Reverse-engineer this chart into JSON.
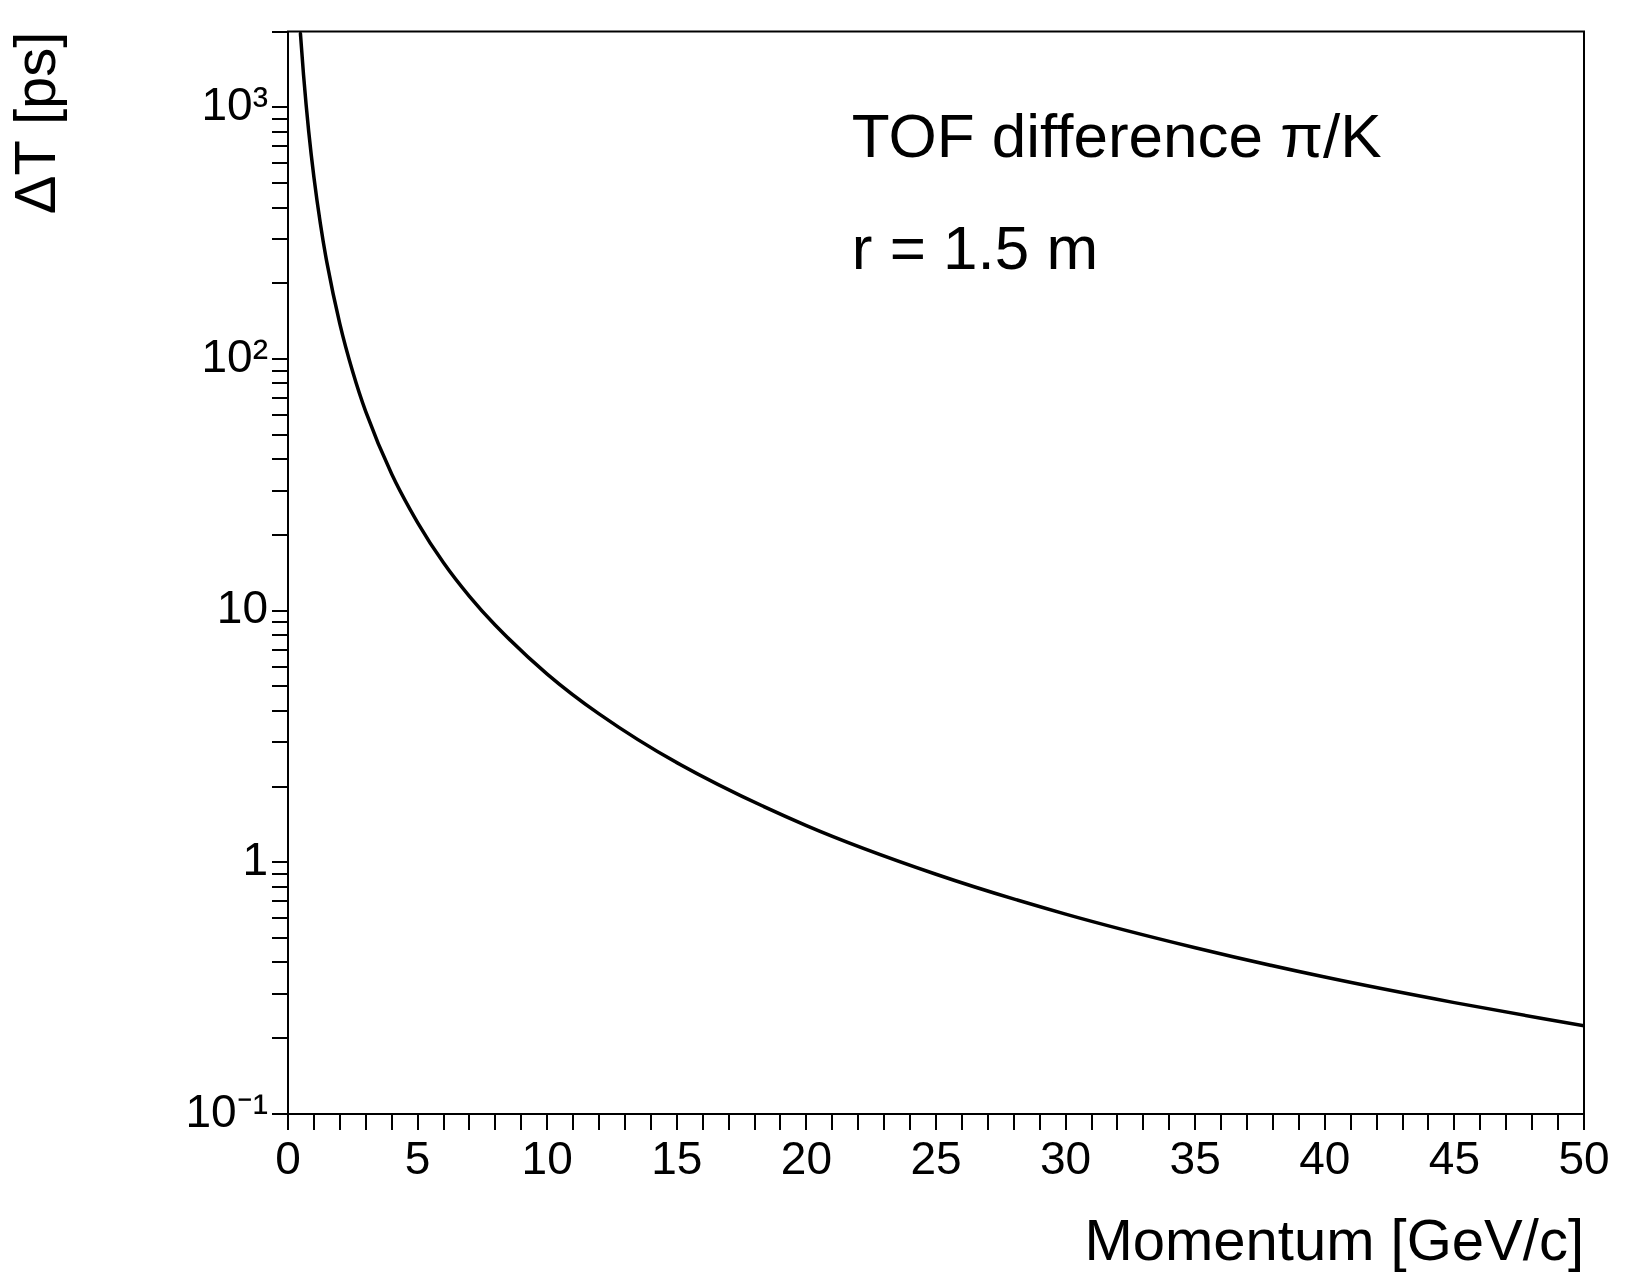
{
  "chart_data": {
    "type": "line",
    "xlabel": "Momentum [GeV/c]",
    "ylabel": "ΔT [ps]",
    "annotations": [
      "TOF difference π/K",
      "r = 1.5 m"
    ],
    "log": "y",
    "grid": false,
    "legend": false,
    "marker": "none",
    "line_style": "solid",
    "xlim": [
      0,
      50
    ],
    "xticks": [
      0,
      {
        "value": 1,
        "label": null
      },
      {
        "value": 2,
        "label": null
      },
      {
        "value": 3,
        "label": null
      },
      {
        "value": 4,
        "label": null
      },
      5,
      {
        "value": 6,
        "label": null
      },
      {
        "value": 7,
        "label": null
      },
      {
        "value": 8,
        "label": null
      },
      {
        "value": 9,
        "label": null
      },
      10,
      {
        "value": 11,
        "label": null
      },
      {
        "value": 12,
        "label": null
      },
      {
        "value": 13,
        "label": null
      },
      {
        "value": 14,
        "label": null
      },
      15,
      {
        "value": 16,
        "label": null
      },
      {
        "value": 17,
        "label": null
      },
      {
        "value": 18,
        "label": null
      },
      {
        "value": 19,
        "label": null
      },
      20,
      {
        "value": 21,
        "label": null
      },
      {
        "value": 22,
        "label": null
      },
      {
        "value": 23,
        "label": null
      },
      {
        "value": 24,
        "label": null
      },
      25,
      {
        "value": 26,
        "label": null
      },
      {
        "value": 27,
        "label": null
      },
      {
        "value": 28,
        "label": null
      },
      {
        "value": 29,
        "label": null
      },
      30,
      {
        "value": 31,
        "label": null
      },
      {
        "value": 32,
        "label": null
      },
      {
        "value": 33,
        "label": null
      },
      {
        "value": 34,
        "label": null
      },
      35,
      {
        "value": 36,
        "label": null
      },
      {
        "value": 37,
        "label": null
      },
      {
        "value": 38,
        "label": null
      },
      {
        "value": 39,
        "label": null
      },
      40,
      {
        "value": 41,
        "label": null
      },
      {
        "value": 42,
        "label": null
      },
      {
        "value": 43,
        "label": null
      },
      {
        "value": 44,
        "label": null
      },
      45,
      {
        "value": 46,
        "label": null
      },
      {
        "value": 47,
        "label": null
      },
      {
        "value": 48,
        "label": null
      },
      {
        "value": 49,
        "label": null
      },
      50
    ],
    "ylim": [
      0.1,
      2000
    ],
    "yticks": [
      {
        "value": 0.1,
        "label": "10⁻¹"
      },
      {
        "value": 0.2,
        "label": null
      },
      {
        "value": 0.3,
        "label": null
      },
      {
        "value": 0.4,
        "label": null
      },
      {
        "value": 0.5,
        "label": null
      },
      {
        "value": 0.6,
        "label": null
      },
      {
        "value": 0.7,
        "label": null
      },
      {
        "value": 0.8,
        "label": null
      },
      {
        "value": 0.9,
        "label": null
      },
      1,
      {
        "value": 2,
        "label": null
      },
      {
        "value": 3,
        "label": null
      },
      {
        "value": 4,
        "label": null
      },
      {
        "value": 5,
        "label": null
      },
      {
        "value": 6,
        "label": null
      },
      {
        "value": 7,
        "label": null
      },
      {
        "value": 8,
        "label": null
      },
      {
        "value": 9,
        "label": null
      },
      10,
      {
        "value": 20,
        "label": null
      },
      {
        "value": 30,
        "label": null
      },
      {
        "value": 40,
        "label": null
      },
      {
        "value": 50,
        "label": null
      },
      {
        "value": 60,
        "label": null
      },
      {
        "value": 70,
        "label": null
      },
      {
        "value": 80,
        "label": null
      },
      {
        "value": 90,
        "label": null
      },
      {
        "value": 100,
        "label": "10²"
      },
      {
        "value": 200,
        "label": null
      },
      {
        "value": 300,
        "label": null
      },
      {
        "value": 400,
        "label": null
      },
      {
        "value": 500,
        "label": null
      },
      {
        "value": 600,
        "label": null
      },
      {
        "value": 700,
        "label": null
      },
      {
        "value": 800,
        "label": null
      },
      {
        "value": 900,
        "label": null
      },
      {
        "value": 1000,
        "label": "10³"
      },
      {
        "value": 2000,
        "label": null
      }
    ],
    "series": [
      {
        "color": "#000000",
        "x": [
          0.48,
          0.6,
          0.8,
          1,
          1.25,
          1.5,
          2,
          2.5,
          3,
          4,
          5,
          6,
          7,
          8,
          10,
          12,
          15,
          20,
          25,
          30,
          35,
          40,
          45,
          50
        ],
        "values": [
          1965,
          1342,
          800,
          528,
          345,
          242,
          138,
          88.8,
          61.8,
          34.9,
          22.4,
          15.5,
          11.4,
          8.75,
          5.6,
          3.89,
          2.49,
          1.4,
          0.897,
          0.623,
          0.458,
          0.35,
          0.277,
          0.224
        ]
      }
    ]
  }
}
